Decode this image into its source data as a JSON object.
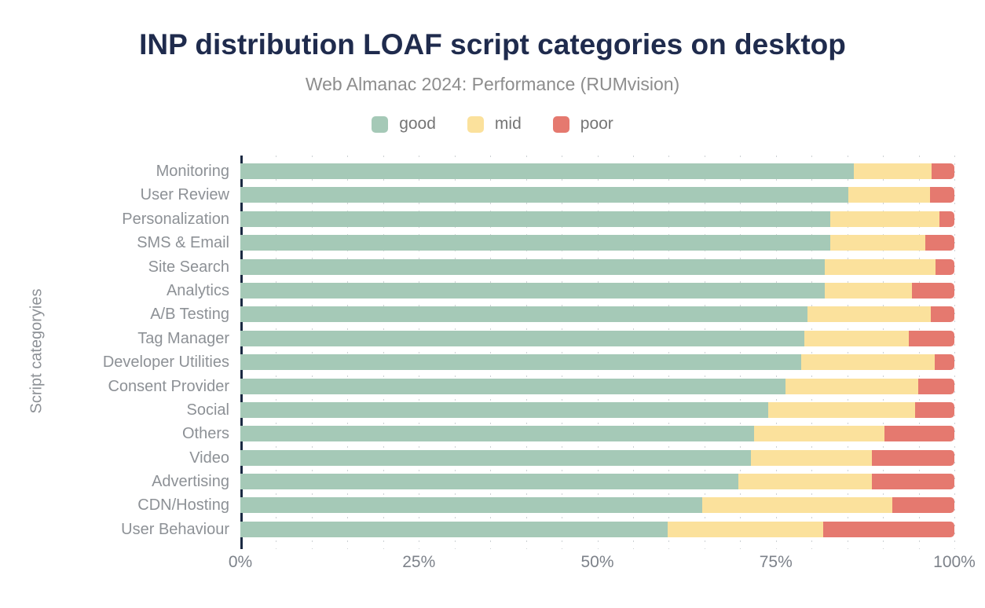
{
  "header": {
    "title": "INP distribution LOAF script categories on desktop",
    "subtitle": "Web Almanac 2024: Performance (RUMvision)"
  },
  "legend": [
    {
      "label": "good",
      "color": "#a5c9b7"
    },
    {
      "label": "mid",
      "color": "#fbe19c"
    },
    {
      "label": "poor",
      "color": "#e5796f"
    }
  ],
  "colors": {
    "good": "#a5c9b7",
    "mid": "#fbe19c",
    "poor": "#e5796f",
    "title": "#1f2b4d",
    "axis_line": "#1b2a43",
    "gridline": "#cdd1d4",
    "category_label": "#8d9196",
    "tick_label": "#7d828a"
  },
  "chart_data": {
    "type": "bar",
    "orientation": "horizontal",
    "stacked": true,
    "title": "INP distribution LOAF script categories on desktop",
    "subtitle": "Web Almanac 2024: Performance (RUMvision)",
    "xlabel": "",
    "ylabel": "Script categoryies",
    "xlim": [
      0,
      100
    ],
    "x_ticks": [
      "0%",
      "25%",
      "50%",
      "75%",
      "100%"
    ],
    "x_tick_values": [
      0,
      25,
      50,
      75,
      100
    ],
    "grid": {
      "visible": true,
      "step_percent": 5,
      "style": "dotted"
    },
    "legend_position": "top",
    "categories": [
      "Monitoring",
      "User Review",
      "Personalization",
      "SMS & Email",
      "Site Search",
      "Analytics",
      "A/B Testing",
      "Tag Manager",
      "Developer Utilities",
      "Consent Provider",
      "Social",
      "Others",
      "Video",
      "Advertising",
      "CDN/Hosting",
      "User Behaviour"
    ],
    "series": [
      {
        "name": "good",
        "color": "#a5c9b7",
        "values": [
          85.9,
          85.2,
          82.6,
          82.6,
          81.9,
          81.8,
          79.4,
          79.0,
          78.6,
          76.4,
          73.9,
          72.0,
          71.5,
          69.8,
          64.7,
          59.8
        ]
      },
      {
        "name": "mid",
        "color": "#fbe19c",
        "values": [
          10.9,
          11.4,
          15.3,
          13.3,
          15.5,
          12.3,
          17.3,
          14.6,
          18.7,
          18.5,
          20.6,
          18.2,
          17.0,
          18.6,
          26.6,
          21.8
        ]
      },
      {
        "name": "poor",
        "color": "#e5796f",
        "values": [
          3.2,
          3.4,
          2.1,
          4.1,
          2.6,
          5.9,
          3.3,
          6.4,
          2.7,
          5.1,
          5.5,
          9.8,
          11.5,
          11.6,
          8.7,
          18.4
        ]
      }
    ]
  }
}
